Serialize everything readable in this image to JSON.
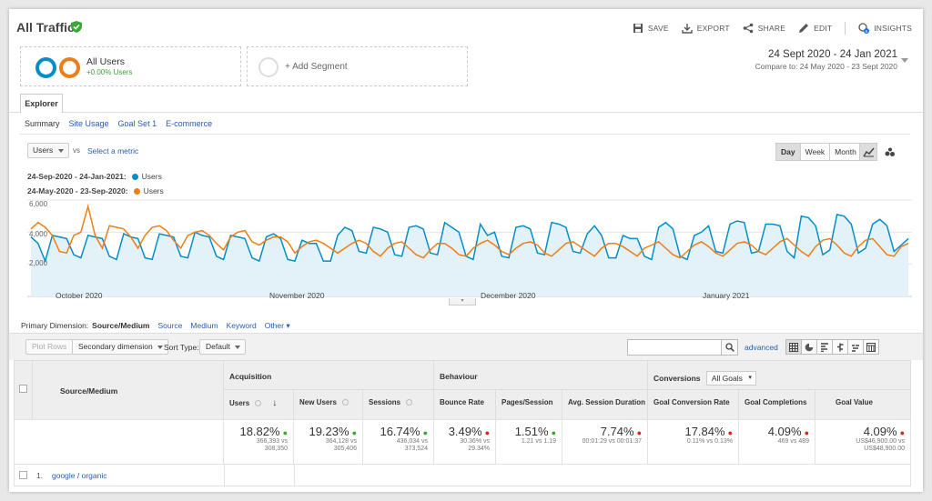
{
  "header": {
    "title": "All Traffic",
    "actions": [
      "SAVE",
      "EXPORT",
      "SHARE",
      "EDIT",
      "INSIGHTS"
    ]
  },
  "segments": {
    "all_users": "All Users",
    "all_users_pct": "+0.00% Users",
    "add_segment": "+ Add Segment"
  },
  "date_range": {
    "primary": "24 Sept 2020 - 24 Jan 2021",
    "compare": "Compare to: 24 May 2020 - 23 Sept 2020"
  },
  "tabs": {
    "explorer": "Explorer",
    "subtabs": [
      "Summary",
      "Site Usage",
      "Goal Set 1",
      "E-commerce"
    ]
  },
  "chart_controls": {
    "metric": "Users",
    "vs": "vs",
    "select_metric": "Select a metric",
    "periods": [
      "Day",
      "Week",
      "Month"
    ]
  },
  "legend": [
    {
      "range": "24-Sep-2020 - 24-Jan-2021:",
      "name": "Users",
      "color": "#058dc7"
    },
    {
      "range": "24-May-2020 - 23-Sep-2020:",
      "name": "Users",
      "color": "#ed7e17"
    }
  ],
  "chart_data": {
    "type": "line",
    "y_ticks": [
      "6,000",
      "4,000",
      "2,000"
    ],
    "ylim": [
      0,
      6000
    ],
    "x_tick_labels": [
      "October 2020",
      "November 2020",
      "December 2020",
      "January 2021"
    ],
    "series": [
      {
        "name": "Users",
        "color": "#058dc7",
        "fill": true,
        "values": [
          3700,
          3300,
          2200,
          3800,
          3700,
          3600,
          2600,
          2400,
          3800,
          3700,
          3600,
          2500,
          2300,
          3900,
          3700,
          3600,
          2400,
          2300,
          3900,
          3800,
          3700,
          2500,
          2400,
          4000,
          3800,
          3700,
          2500,
          2300,
          3800,
          3700,
          3600,
          2400,
          2200,
          3700,
          3900,
          3600,
          2300,
          2200,
          3500,
          3300,
          3300,
          2200,
          2200,
          3800,
          4300,
          4100,
          2800,
          2700,
          4300,
          4200,
          4000,
          2600,
          2500,
          4300,
          4400,
          4200,
          2700,
          2600,
          4600,
          4300,
          4000,
          2500,
          2300,
          4500,
          3800,
          4000,
          2500,
          2400,
          4300,
          4400,
          4200,
          2700,
          2600,
          4600,
          4500,
          4300,
          2800,
          2700,
          3900,
          4400,
          3800,
          2400,
          2400,
          3800,
          3600,
          3600,
          2500,
          2300,
          4300,
          4600,
          4200,
          2500,
          2300,
          3800,
          4000,
          4400,
          2800,
          2700,
          4500,
          4700,
          4600,
          2700,
          2800,
          4500,
          4500,
          4400,
          2800,
          2400,
          5000,
          4900,
          4400,
          2600,
          2900,
          5100,
          5000,
          4500,
          2700,
          3000,
          4500,
          4800,
          4400,
          2800,
          3200,
          3600
        ]
      },
      {
        "name": "Users",
        "color": "#ed7e17",
        "fill": false,
        "values": [
          4200,
          4600,
          4300,
          3800,
          2800,
          2700,
          3800,
          4000,
          5600,
          3800,
          3000,
          4400,
          4300,
          4200,
          3700,
          3000,
          3800,
          4300,
          4400,
          4100,
          3500,
          3000,
          3800,
          4000,
          4100,
          3800,
          3300,
          2900,
          3700,
          4000,
          4100,
          3400,
          3200,
          3500,
          3700,
          3700,
          3400,
          2700,
          3100,
          3400,
          3500,
          3300,
          3000,
          2700,
          3000,
          3300,
          3500,
          3300,
          2800,
          2500,
          3000,
          3300,
          3400,
          3000,
          2600,
          2400,
          2900,
          3300,
          3300,
          3000,
          2600,
          2500,
          3000,
          3300,
          3500,
          3200,
          2800,
          2600,
          3000,
          3300,
          3400,
          3200,
          2700,
          2500,
          2900,
          3300,
          3400,
          3100,
          2800,
          2500,
          3000,
          3300,
          3300,
          3100,
          2800,
          2500,
          3000,
          3200,
          3400,
          3000,
          2600,
          2400,
          2800,
          3200,
          3400,
          3100,
          2700,
          2500,
          2900,
          3300,
          3400,
          3200,
          2800,
          2600,
          3000,
          3400,
          3600,
          3200,
          2800,
          2500,
          3100,
          3500,
          3600,
          3200,
          2700,
          2500,
          3100,
          3500,
          3600,
          3100,
          2600,
          2500,
          3100,
          3300
        ]
      }
    ]
  },
  "primary_dimension": {
    "label": "Primary Dimension:",
    "active": "Source/Medium",
    "options": [
      "Source",
      "Medium",
      "Keyword",
      "Other"
    ]
  },
  "toolbar": {
    "plot_rows": "Plot Rows",
    "secondary_dimension": "Secondary dimension",
    "sort_type_label": "Sort Type:",
    "sort_type_value": "Default",
    "advanced": "advanced"
  },
  "table": {
    "dimension_header": "Source/Medium",
    "groups": {
      "acquisition": "Acquisition",
      "behaviour": "Behaviour",
      "conversions": "Conversions",
      "goals_select": "All Goals"
    },
    "columns": [
      "Users",
      "New Users",
      "Sessions",
      "Bounce Rate",
      "Pages/Session",
      "Avg. Session Duration",
      "Goal Conversion Rate",
      "Goal Completions",
      "Goal Value"
    ],
    "totals": [
      {
        "pct": "18.82%",
        "dir": "up",
        "detail": [
          "366,393 vs",
          "308,350"
        ]
      },
      {
        "pct": "19.23%",
        "dir": "up",
        "detail": [
          "364,128 vs",
          "305,406"
        ]
      },
      {
        "pct": "16.74%",
        "dir": "up",
        "detail": [
          "436,034 vs",
          "373,524"
        ]
      },
      {
        "pct": "3.49%",
        "dir": "down",
        "detail": [
          "30.36% vs",
          "29.34%"
        ]
      },
      {
        "pct": "1.51%",
        "dir": "up",
        "detail": [
          "1.21 vs 1.19"
        ]
      },
      {
        "pct": "7.74%",
        "dir": "down",
        "detail": [
          "00:01:29 vs 00:01:37"
        ]
      },
      {
        "pct": "17.84%",
        "dir": "down",
        "detail": [
          "0.11% vs 0.13%"
        ]
      },
      {
        "pct": "4.09%",
        "dir": "down",
        "detail": [
          "469 vs 489"
        ]
      },
      {
        "pct": "4.09%",
        "dir": "down",
        "detail": [
          "US$46,900.00 vs",
          "US$48,900.00"
        ]
      }
    ],
    "rows": [
      {
        "index": "1.",
        "source": "google / organic"
      }
    ]
  }
}
